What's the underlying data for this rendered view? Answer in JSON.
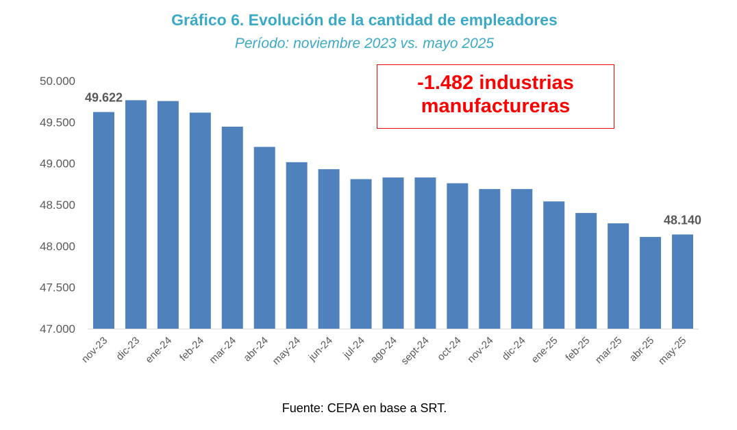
{
  "chart_data": {
    "type": "bar",
    "title": "Gráfico 6. Evolución de la cantidad de empleadores",
    "subtitle": "Período: noviembre 2023 vs. mayo 2025",
    "categories": [
      "nov-23",
      "dic-23",
      "ene-24",
      "feb-24",
      "mar-24",
      "abr-24",
      "may-24",
      "jun-24",
      "jul-24",
      "ago-24",
      "sept-24",
      "oct-24",
      "nov-24",
      "dic-24",
      "ene-25",
      "feb-25",
      "mar-25",
      "abr-25",
      "may-25"
    ],
    "values": [
      49622,
      49765,
      49755,
      49615,
      49445,
      49200,
      49015,
      48930,
      48810,
      48830,
      48830,
      48760,
      48690,
      48690,
      48540,
      48400,
      48275,
      48110,
      48140
    ],
    "data_labels": [
      {
        "index": 0,
        "text": "49.622"
      },
      {
        "index": 18,
        "text": "48.140"
      }
    ],
    "ylim": [
      47000,
      50000
    ],
    "yticks": [
      47000,
      47500,
      48000,
      48500,
      49000,
      49500,
      50000
    ],
    "ytick_labels": [
      "47.000",
      "47.500",
      "48.000",
      "48.500",
      "49.000",
      "49.500",
      "50.000"
    ],
    "xlabel": "",
    "ylabel": "",
    "grid": false,
    "bar_color": "#4f81bd",
    "annotation": [
      "-1.482 industrias",
      "manufactureras"
    ],
    "annotation_color": "#ff0000",
    "source": "Fuente: CEPA en base a SRT."
  }
}
